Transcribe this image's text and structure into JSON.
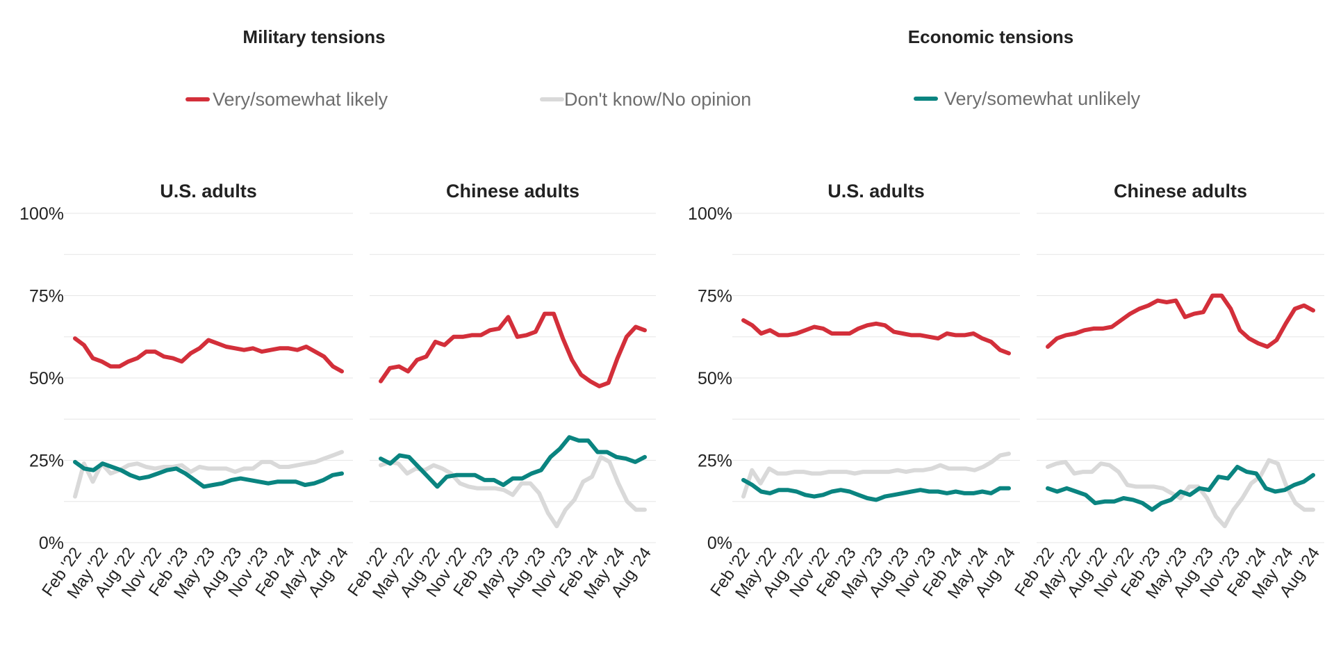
{
  "legend": [
    {
      "key": "likely",
      "label": "Very/somewhat likely",
      "color": "#d32f3a"
    },
    {
      "key": "dk",
      "label": "Don't know/No opinion",
      "color": "#d9d9d9"
    },
    {
      "key": "unlikely",
      "label": "Very/somewhat unlikely",
      "color": "#0a8480"
    }
  ],
  "chart_data": {
    "type": "line",
    "y_ticks": [
      "0%",
      "25%",
      "50%",
      "75%",
      "100%"
    ],
    "ylim": [
      0,
      100
    ],
    "x_ticks": [
      "Feb '22",
      "May '22",
      "Aug '22",
      "Nov '22",
      "Feb '23",
      "May '23",
      "Aug '23",
      "Nov '23",
      "Feb '24",
      "May '24",
      "Aug '24"
    ],
    "groups": [
      {
        "title": "Military tensions",
        "panels": [
          {
            "title": "U.S. adults",
            "series": {
              "likely": [
                62,
                60,
                56,
                55,
                53.5,
                53.5,
                55,
                56,
                58,
                58,
                56.5,
                56,
                55,
                57.5,
                59,
                61.5,
                60.5,
                59.5,
                59,
                58.5,
                59,
                58,
                58.5,
                59,
                59,
                58.5,
                59.5,
                58,
                56.5,
                53.5,
                52
              ],
              "dk": [
                14,
                24,
                18.5,
                24,
                21,
                22,
                23.5,
                24,
                23,
                22.5,
                23,
                23,
                23.5,
                21.5,
                23,
                22.5,
                22.5,
                22.5,
                21.5,
                22.5,
                22.5,
                24.5,
                24.5,
                23,
                23,
                23.5,
                24,
                24.5,
                25.5,
                26.5,
                27.5
              ],
              "unlikely": [
                24.5,
                22.5,
                22,
                24,
                23,
                22,
                20.5,
                19.5,
                20,
                21,
                22,
                22.5,
                21,
                19,
                17,
                17.5,
                18,
                19,
                19.5,
                19,
                18.5,
                18,
                18.5,
                18.5,
                18.5,
                17.5,
                18,
                19,
                20.5,
                21
              ]
            }
          },
          {
            "title": "Chinese adults",
            "series": {
              "likely": [
                49,
                53,
                53.5,
                52,
                55.5,
                56.5,
                61,
                60,
                62.5,
                62.5,
                63,
                63,
                64.5,
                65,
                68.5,
                62.5,
                63,
                64,
                69.5,
                69.5,
                62,
                55.5,
                51,
                49,
                47.5,
                48.5,
                56,
                62.5,
                65.5,
                64.5
              ],
              "dk": [
                23.5,
                24.5,
                24,
                21,
                22.5,
                22,
                23.5,
                22.5,
                21,
                18,
                17,
                16.5,
                16.5,
                16.5,
                16,
                14.5,
                18,
                18,
                15,
                9,
                5,
                10,
                13,
                18.5,
                20,
                26,
                24.5,
                18,
                12.5,
                10,
                10
              ],
              "unlikely": [
                25.5,
                24,
                26.5,
                26,
                23,
                20,
                17,
                20,
                20.5,
                20.5,
                20.5,
                19,
                19,
                17.5,
                19.5,
                19.5,
                21,
                22,
                26,
                28.5,
                32,
                31,
                31,
                27.5,
                27.5,
                26,
                25.5,
                24.5,
                26
              ]
            }
          }
        ]
      },
      {
        "title": "Economic tensions",
        "panels": [
          {
            "title": "U.S. adults",
            "series": {
              "likely": [
                67.5,
                66,
                63.5,
                64.5,
                63,
                63,
                63.5,
                64.5,
                65.5,
                65,
                63.5,
                63.5,
                63.5,
                65,
                66,
                66.5,
                66,
                64,
                63.5,
                63,
                63,
                62.5,
                62,
                63.5,
                63,
                63,
                63.5,
                62,
                61,
                58.5,
                57.5
              ],
              "dk": [
                14,
                22,
                18,
                22.5,
                21,
                21,
                21.5,
                21.5,
                21,
                21,
                21.5,
                21.5,
                21.5,
                21,
                21.5,
                21.5,
                21.5,
                21.5,
                22,
                21.5,
                22,
                22,
                22.5,
                23.5,
                22.5,
                22.5,
                22.5,
                22,
                23,
                24.5,
                26.5,
                27
              ],
              "unlikely": [
                19,
                17.5,
                15.5,
                15,
                16,
                16,
                15.5,
                14.5,
                14,
                14.5,
                15.5,
                16,
                15.5,
                14.5,
                13.5,
                13,
                14,
                14.5,
                15,
                15.5,
                16,
                15.5,
                15.5,
                15,
                15.5,
                15,
                15,
                15.5,
                15,
                16.5,
                16.5
              ]
            }
          },
          {
            "title": "Chinese adults",
            "series": {
              "likely": [
                59.5,
                62,
                63,
                63.5,
                64.5,
                65,
                65,
                65.5,
                67.5,
                69.5,
                71,
                72,
                73.5,
                73,
                73.5,
                68.5,
                69.5,
                70,
                75,
                75,
                71,
                64.5,
                62,
                60.5,
                59.5,
                61.5,
                66.5,
                71,
                72,
                70.5
              ],
              "dk": [
                23,
                24,
                24.5,
                21,
                21.5,
                21.5,
                24,
                23.5,
                21.5,
                17.5,
                17,
                17,
                17,
                16.5,
                15,
                13.5,
                17,
                17,
                13.5,
                8,
                5,
                10,
                13.5,
                18,
                20,
                25,
                24,
                17,
                12,
                10,
                10
              ],
              "unlikely": [
                16.5,
                15.5,
                16.5,
                15.5,
                14.5,
                12,
                12.5,
                12.5,
                13.5,
                13,
                12,
                10,
                12,
                13,
                15.5,
                14.5,
                16.5,
                16,
                20,
                19.5,
                23,
                21.5,
                21,
                16.5,
                15.5,
                16,
                17.5,
                18.5,
                20.5
              ]
            }
          }
        ]
      }
    ]
  }
}
